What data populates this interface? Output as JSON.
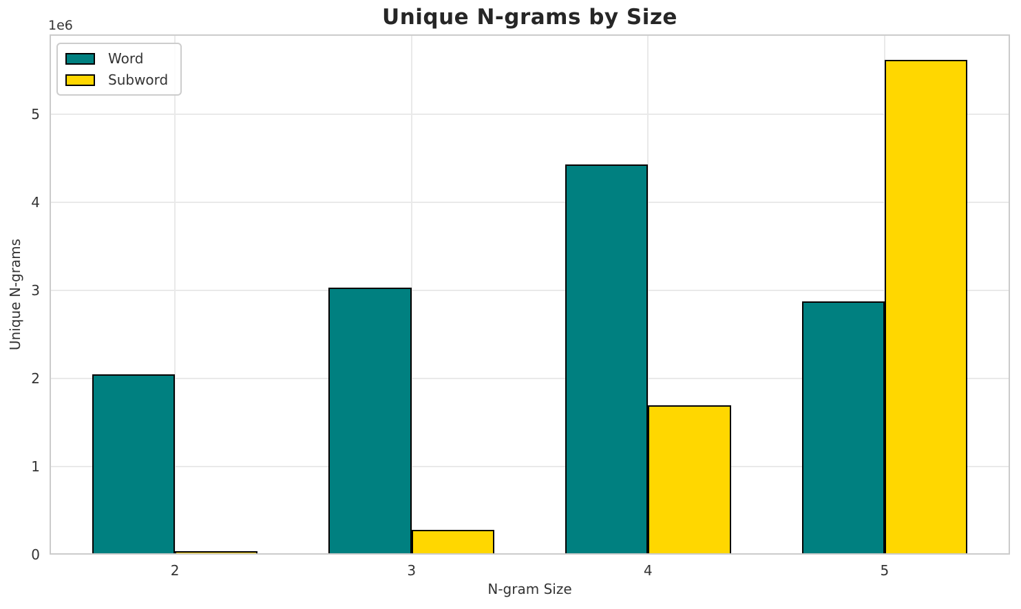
{
  "chart_data": {
    "type": "bar",
    "title": "Unique N-grams by Size",
    "xlabel": "N-gram Size",
    "ylabel": "Unique N-grams",
    "y_offset_label": "1e6",
    "categories": [
      "2",
      "3",
      "4",
      "5"
    ],
    "x": [
      0,
      1,
      2,
      3
    ],
    "series": [
      {
        "name": "Word",
        "color": "#008080",
        "values": [
          2050000,
          3030000,
          4430000,
          2880000
        ]
      },
      {
        "name": "Subword",
        "color": "#FFD700",
        "values": [
          40000,
          280000,
          1700000,
          5620000
        ]
      }
    ],
    "bar_width": 0.35,
    "bar_edge_color": "#000000",
    "xlim": [
      -0.53,
      3.53
    ],
    "ylim": [
      0,
      5910000
    ],
    "yticks": [
      0,
      1000000,
      2000000,
      3000000,
      4000000,
      5000000
    ],
    "ytick_labels": [
      "0",
      "1",
      "2",
      "3",
      "4",
      "5"
    ],
    "grid": true,
    "legend": {
      "position": "upper left"
    }
  },
  "colors": {
    "background": "#ffffff",
    "grid": "#e9e9e9",
    "spine": "#cbcbcb",
    "text": "#262626",
    "tick_text": "#333333"
  }
}
